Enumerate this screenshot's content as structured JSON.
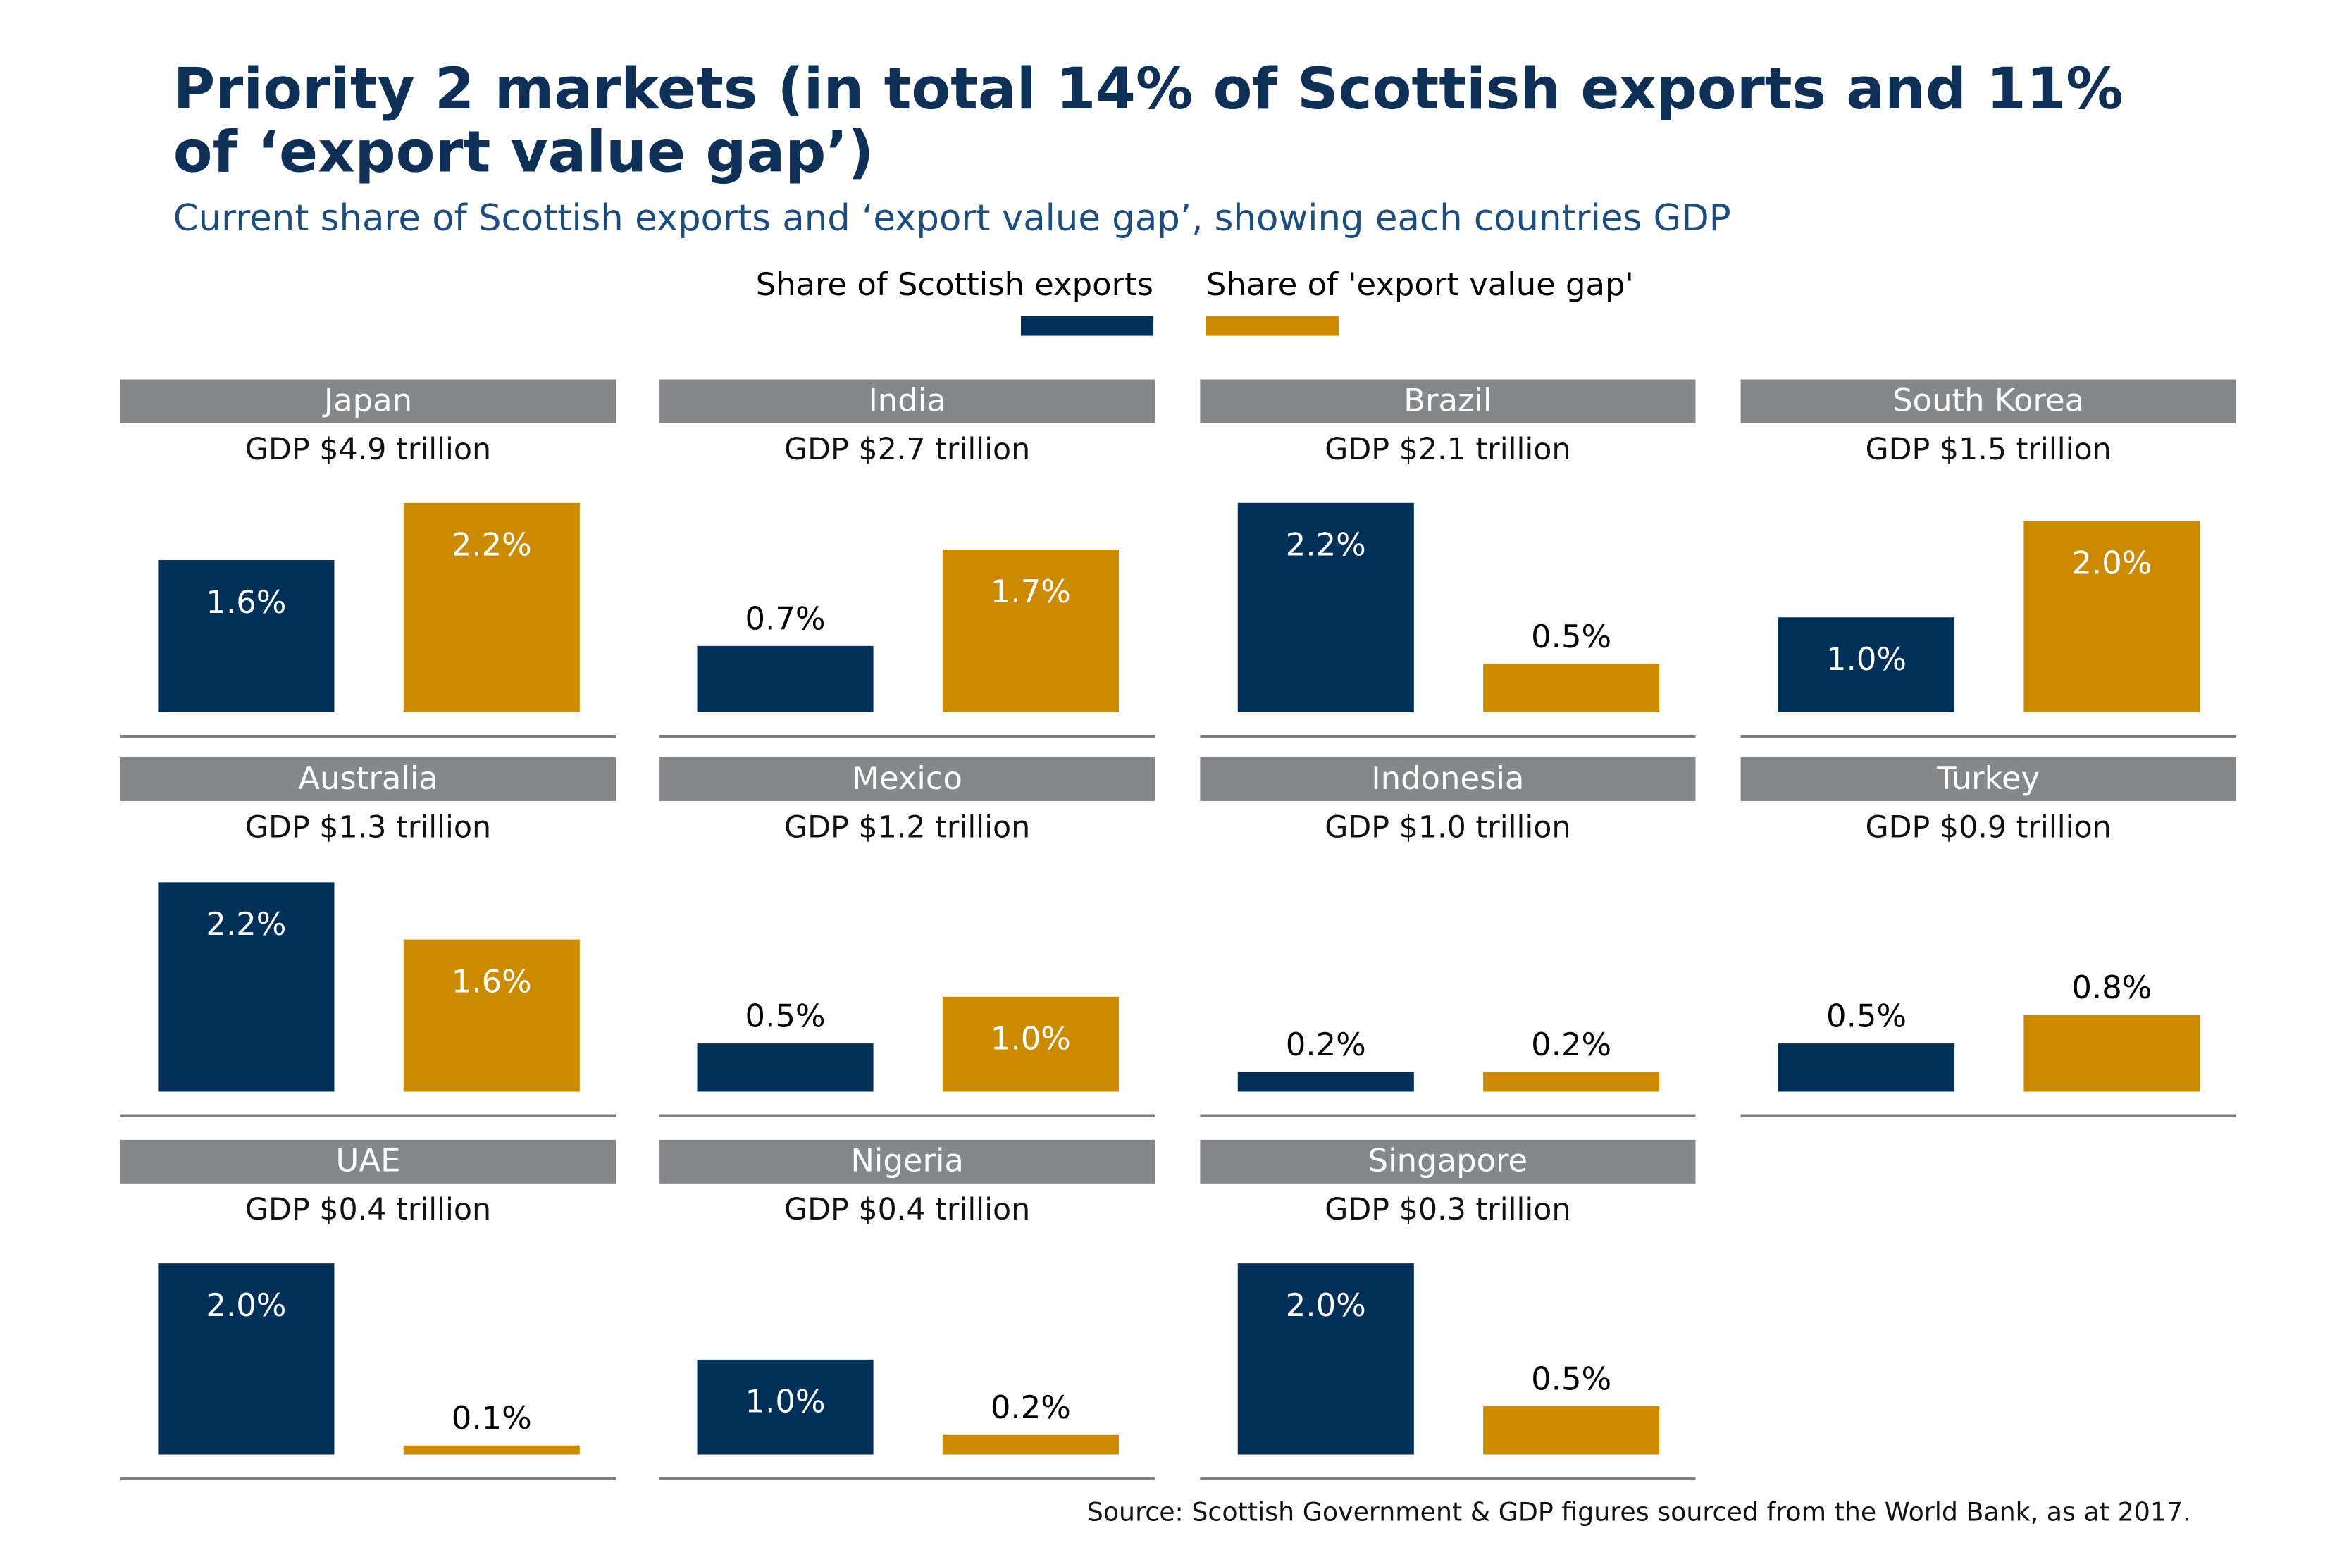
{
  "chart_data": {
    "type": "bar",
    "title": "Priority 2 markets (in total 14% of Scottish exports and 11% of ‘export value gap’)",
    "subtitle": "Current share of Scottish exports and ‘export value gap’, showing each countries GDP",
    "legend_placement": "top",
    "series": [
      {
        "name": "Share of Scottish exports",
        "color": "#002f57"
      },
      {
        "name": "Share of 'export value gap'",
        "color": "#cc8a00"
      }
    ],
    "unit": "%",
    "panels": [
      {
        "country": "Japan",
        "gdp": "GDP $4.9 trillion",
        "values": [
          1.6,
          2.2
        ]
      },
      {
        "country": "India",
        "gdp": "GDP $2.7 trillion",
        "values": [
          0.7,
          1.7
        ]
      },
      {
        "country": "Brazil",
        "gdp": "GDP $2.1 trillion",
        "values": [
          2.2,
          0.5
        ]
      },
      {
        "country": "South Korea",
        "gdp": "GDP $1.5 trillion",
        "values": [
          1.0,
          2.0
        ]
      },
      {
        "country": "Australia",
        "gdp": "GDP $1.3 trillion",
        "values": [
          2.2,
          1.6
        ]
      },
      {
        "country": "Mexico",
        "gdp": "GDP $1.2 trillion",
        "values": [
          0.5,
          1.0
        ]
      },
      {
        "country": "Indonesia",
        "gdp": "GDP $1.0 trillion",
        "values": [
          0.2,
          0.2
        ]
      },
      {
        "country": "Turkey",
        "gdp": "GDP $0.9 trillion",
        "values": [
          0.5,
          0.8
        ]
      },
      {
        "country": "UAE",
        "gdp": "GDP $0.4 trillion",
        "values": [
          2.0,
          0.1
        ]
      },
      {
        "country": "Nigeria",
        "gdp": "GDP $0.4 trillion",
        "values": [
          1.0,
          0.2
        ]
      },
      {
        "country": "Singapore",
        "gdp": "GDP $0.3 trillion",
        "values": [
          2.0,
          0.5
        ]
      }
    ],
    "source": "Source: Scottish Government & GDP figures sourced from the World Bank, as at 2017.",
    "header_color": "#85888b"
  }
}
